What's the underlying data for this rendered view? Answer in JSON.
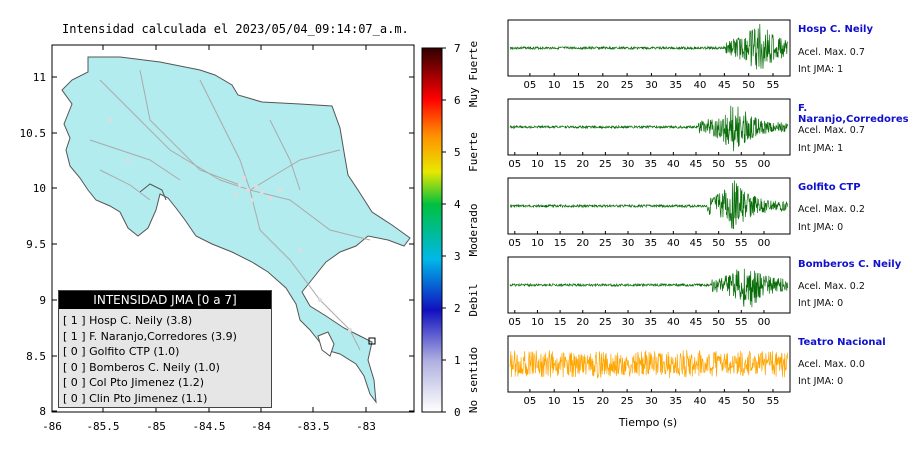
{
  "map": {
    "title": "Intensidad calculada el 2023/05/04_09:14:07_a.m.",
    "y_ticks": [
      "11",
      "10.5",
      "10",
      "9.5",
      "9",
      "8.5",
      "8"
    ],
    "x_ticks": [
      "-86",
      "-85.5",
      "-85",
      "-84.5",
      "-84",
      "-83.5",
      "-83"
    ],
    "colors": {
      "land": "#b3ecee",
      "border": "#555555",
      "roads": "#aaaaaa"
    }
  },
  "scale": {
    "ticks": [
      "7",
      "6",
      "5",
      "4",
      "3",
      "2",
      "1",
      "0"
    ],
    "labels": [
      "Muy Fuerte",
      "Fuerte",
      "Moderado",
      "Debil",
      "No sentido"
    ]
  },
  "legend": {
    "title": "INTENSIDAD JMA [0 a 7]",
    "items": [
      "[ 1 ]  Hosp C. Neily (3.8)",
      "[ 1 ]  F. Naranjo,Corredores (3.9)",
      "[ 0 ]  Golfito CTP (1.0)",
      "[ 0 ]  Bomberos C. Neily (1.0)",
      "[ 0 ]  Col Pto Jimenez (1.2)",
      "[ 0 ]  Clin Pto Jimenez (1.1)"
    ]
  },
  "chart_data": {
    "type": "line",
    "xlabel": "Tiempo (s)",
    "series": [
      {
        "name": "Hosp C. Neily",
        "accel": "Acel. Max. 0.7",
        "int": "Int JMA: 1",
        "color": "#0a6e0a",
        "ticks": [
          "05",
          "10",
          "15",
          "20",
          "25",
          "30",
          "35",
          "40",
          "45",
          "50",
          "55"
        ],
        "onset": 45,
        "peak": 52
      },
      {
        "name": "F. Naranjo,Corredores",
        "accel": "Acel. Max. 0.7",
        "int": "Int JMA: 1",
        "color": "#0a6e0a",
        "ticks": [
          "05",
          "10",
          "15",
          "20",
          "25",
          "30",
          "35",
          "40",
          "45",
          "50",
          "55",
          "00"
        ],
        "onset": 42,
        "peak": 50
      },
      {
        "name": "Golfito CTP",
        "accel": "Acel. Max. 0.2",
        "int": "Int JMA: 0",
        "color": "#0a6e0a",
        "ticks": [
          "05",
          "10",
          "15",
          "20",
          "25",
          "30",
          "35",
          "40",
          "45",
          "50",
          "55",
          "00"
        ],
        "onset": 44,
        "peak": 50
      },
      {
        "name": "Bomberos C. Neily",
        "accel": "Acel. Max. 0.2",
        "int": "Int JMA: 0",
        "color": "#0a6e0a",
        "ticks": [
          "05",
          "10",
          "15",
          "20",
          "25",
          "30",
          "35",
          "40",
          "45",
          "50",
          "55",
          "00"
        ],
        "onset": 45,
        "peak": 53
      },
      {
        "name": "Teatro Nacional",
        "accel": "Acel. Max. 0.0",
        "int": "Int JMA: 0",
        "color": "#ffa500",
        "ticks": [
          "05",
          "10",
          "15",
          "20",
          "25",
          "30",
          "35",
          "40",
          "45",
          "50",
          "55"
        ],
        "onset": 0,
        "peak": 25
      }
    ]
  }
}
